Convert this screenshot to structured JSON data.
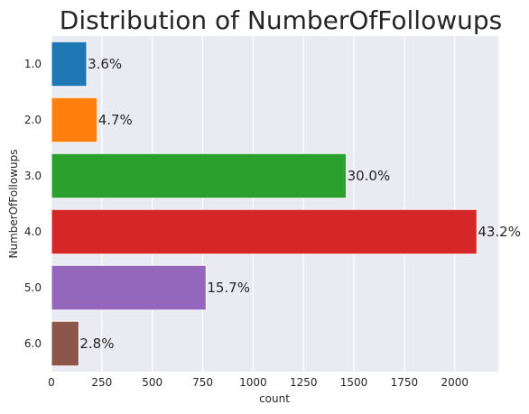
{
  "chart_data": {
    "type": "bar",
    "orientation": "horizontal",
    "title": "Distribution of NumberOfFollowups",
    "xlabel": "count",
    "ylabel": "NumberOfFollowups",
    "categories": [
      "1.0",
      "2.0",
      "3.0",
      "4.0",
      "5.0",
      "6.0"
    ],
    "values": [
      175,
      227,
      1462,
      2110,
      767,
      136
    ],
    "labels": [
      "3.6%",
      "4.7%",
      "30.0%",
      "43.2%",
      "15.7%",
      "2.8%"
    ],
    "colors": [
      "#1f77b4",
      "#ff7f0e",
      "#2ca02c",
      "#d62728",
      "#9467bd",
      "#8c564b"
    ],
    "xlim": [
      0,
      2216
    ],
    "xticks": [
      0,
      250,
      500,
      750,
      1000,
      1250,
      1500,
      1750,
      2000
    ],
    "grid": true,
    "background": "#eaeaf2"
  }
}
